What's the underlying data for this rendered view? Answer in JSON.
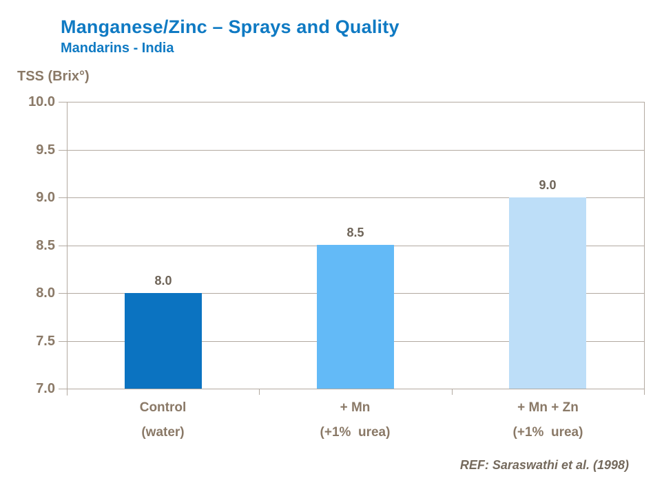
{
  "header": {
    "title": "Manganese/Zinc – Sprays and Quality",
    "subtitle": "Mandarins - India"
  },
  "footer": {
    "reference": "REF: Saraswathi et al. (1998)"
  },
  "colors": {
    "title_blue": "#0f7ac3",
    "text_brown": "#8a7967",
    "value_label_brown": "#6e6458",
    "reference_brown": "#756a5d",
    "grid_taupe": "#b2a9a0",
    "bar_colors": [
      "#0b73c1",
      "#63baf7",
      "#bddef8"
    ]
  },
  "chart_data": {
    "type": "bar",
    "title": "Manganese/Zinc – Sprays and Quality",
    "subtitle": "Mandarins - India",
    "ylabel": "TSS (Brix°)",
    "xlabel": "",
    "categories": [
      {
        "line1": "Control",
        "line2": "(water)"
      },
      {
        "line1": "+ Mn",
        "line2": "(+1%  urea)"
      },
      {
        "line1": "+ Mn + Zn",
        "line2": "(+1%  urea)"
      }
    ],
    "values": [
      8.0,
      8.5,
      9.0
    ],
    "value_labels": [
      "8.0",
      "8.5",
      "9.0"
    ],
    "ylim": [
      7.0,
      10.0
    ],
    "ytick_step": 0.5,
    "ytick_labels": [
      "10.0",
      "9.5",
      "9.0",
      "8.5",
      "8.0",
      "7.5",
      "7.0"
    ],
    "grid": true,
    "legend": false
  }
}
